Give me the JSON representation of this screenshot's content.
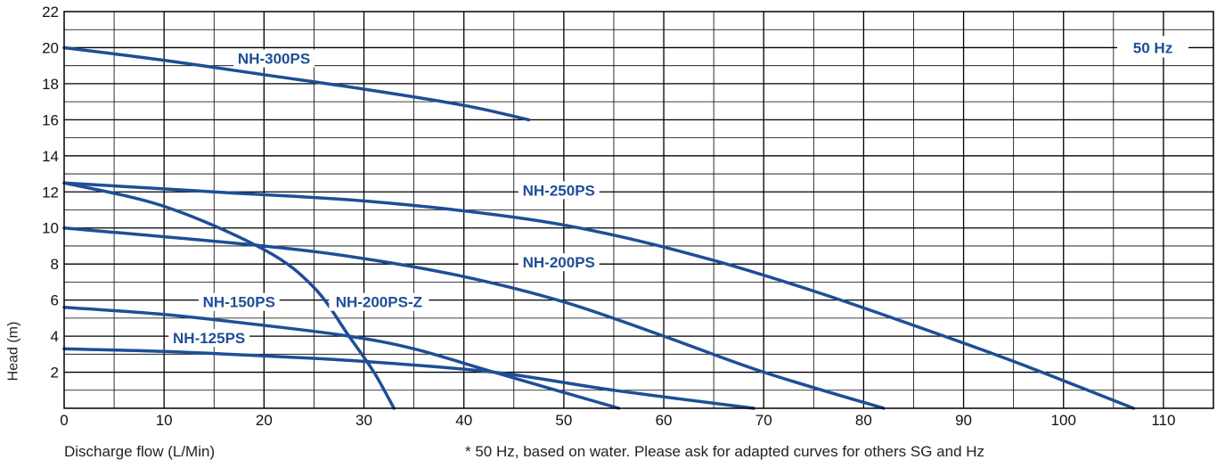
{
  "chart_data": {
    "type": "line",
    "title": "",
    "frequency_badge": "50 Hz",
    "xlabel": "Discharge flow (L/Min)",
    "ylabel": "Head (m)",
    "note": "* 50 Hz, based on water. Please ask for adapted curves for others SG and Hz",
    "xlim": [
      0,
      115
    ],
    "ylim": [
      0,
      22
    ],
    "x_ticks": [
      "0",
      "10",
      "20",
      "30",
      "40",
      "50",
      "60",
      "70",
      "80",
      "90",
      "100",
      "110"
    ],
    "y_ticks": [
      "2",
      "4",
      "6",
      "8",
      "10",
      "12",
      "14",
      "16",
      "18",
      "20",
      "22"
    ],
    "grid": true,
    "colors": {
      "series": "#1f4e96",
      "grid": "#000000",
      "badge_bg": "#ffffff"
    },
    "series": [
      {
        "name": "NH-300PS",
        "points": [
          [
            0,
            20
          ],
          [
            10,
            19.3
          ],
          [
            20,
            18.5
          ],
          [
            30,
            17.7
          ],
          [
            40,
            16.8
          ],
          [
            46.5,
            16
          ]
        ]
      },
      {
        "name": "NH-250PS",
        "points": [
          [
            0,
            12.5
          ],
          [
            15,
            12.0
          ],
          [
            30,
            11.5
          ],
          [
            45,
            10.6
          ],
          [
            55,
            9.6
          ],
          [
            65,
            8.2
          ],
          [
            75,
            6.5
          ],
          [
            85,
            4.6
          ],
          [
            95,
            2.6
          ],
          [
            107,
            0
          ]
        ]
      },
      {
        "name": "NH-200PS",
        "points": [
          [
            0,
            10
          ],
          [
            20,
            9.0
          ],
          [
            30,
            8.3
          ],
          [
            40,
            7.3
          ],
          [
            50,
            5.9
          ],
          [
            60,
            4.0
          ],
          [
            70,
            2.0
          ],
          [
            82,
            0
          ]
        ]
      },
      {
        "name": "NH-200PS-Z",
        "points": [
          [
            0,
            12.5
          ],
          [
            10,
            11.2
          ],
          [
            20,
            8.8
          ],
          [
            25,
            6.7
          ],
          [
            28.5,
            4.0
          ],
          [
            31,
            2.0
          ],
          [
            33,
            0
          ]
        ]
      },
      {
        "name": "NH-150PS",
        "points": [
          [
            0,
            5.6
          ],
          [
            10,
            5.2
          ],
          [
            20,
            4.6
          ],
          [
            28.5,
            4.0
          ],
          [
            35,
            3.3
          ],
          [
            43,
            2.0
          ],
          [
            55.5,
            0
          ]
        ]
      },
      {
        "name": "NH-125PS",
        "points": [
          [
            0,
            3.3
          ],
          [
            10,
            3.15
          ],
          [
            20,
            2.9
          ],
          [
            30,
            2.6
          ],
          [
            43,
            2.0
          ],
          [
            55,
            1.0
          ],
          [
            69,
            0
          ]
        ]
      }
    ]
  }
}
